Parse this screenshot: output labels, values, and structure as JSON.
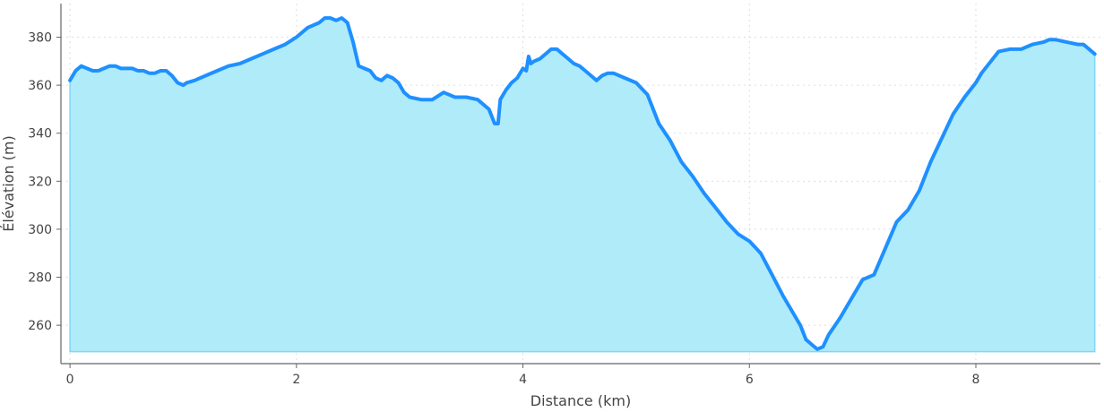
{
  "chart_data": {
    "type": "area",
    "xlabel": "Distance (km)",
    "ylabel": "Élévation (m)",
    "xlim": [
      -0.08,
      9.1
    ],
    "ylim": [
      244,
      394
    ],
    "x_ticks": [
      0,
      2,
      4,
      6,
      8
    ],
    "y_ticks": [
      260,
      280,
      300,
      320,
      340,
      360,
      380
    ],
    "baseline": 249,
    "grid": true,
    "line_color": "#1E90FF",
    "fill_color": "#B0EBFA",
    "fill_edge_color": "#7FD8F2",
    "series": [
      {
        "x": [
          0,
          0.05,
          0.1,
          0.15,
          0.2,
          0.25,
          0.3,
          0.35,
          0.4,
          0.45,
          0.5,
          0.55,
          0.6,
          0.65,
          0.7,
          0.75,
          0.8,
          0.85,
          0.9,
          0.95,
          1.0,
          1.03,
          1.1,
          1.2,
          1.3,
          1.4,
          1.5,
          1.6,
          1.7,
          1.8,
          1.9,
          2.0,
          2.1,
          2.2,
          2.25,
          2.3,
          2.35,
          2.4,
          2.45,
          2.5,
          2.55,
          2.6,
          2.65,
          2.7,
          2.75,
          2.8,
          2.85,
          2.9,
          2.95,
          3.0,
          3.1,
          3.2,
          3.3,
          3.35,
          3.4,
          3.5,
          3.6,
          3.7,
          3.75,
          3.78,
          3.8,
          3.85,
          3.9,
          3.95,
          4.0,
          4.03,
          4.05,
          4.07,
          4.1,
          4.15,
          4.2,
          4.25,
          4.3,
          4.35,
          4.4,
          4.45,
          4.5,
          4.55,
          4.6,
          4.65,
          4.7,
          4.75,
          4.8,
          4.9,
          5.0,
          5.1,
          5.15,
          5.2,
          5.3,
          5.4,
          5.5,
          5.6,
          5.7,
          5.8,
          5.9,
          6.0,
          6.1,
          6.2,
          6.3,
          6.4,
          6.45,
          6.5,
          6.55,
          6.6,
          6.65,
          6.7,
          6.8,
          6.9,
          7.0,
          7.05,
          7.1,
          7.2,
          7.3,
          7.4,
          7.5,
          7.6,
          7.7,
          7.8,
          7.9,
          8.0,
          8.05,
          8.1,
          8.2,
          8.3,
          8.4,
          8.5,
          8.6,
          8.65,
          8.7,
          8.8,
          8.9,
          8.95,
          9.0,
          9.05
        ],
        "y": [
          362,
          366,
          368,
          367,
          366,
          366,
          367,
          368,
          368,
          367,
          367,
          367,
          366,
          366,
          365,
          365,
          366,
          366,
          364,
          361,
          360,
          361,
          362,
          364,
          366,
          368,
          369,
          371,
          373,
          375,
          377,
          380,
          384,
          386,
          388,
          388,
          387,
          388,
          386,
          378,
          368,
          367,
          366,
          363,
          362,
          364,
          363,
          361,
          357,
          355,
          354,
          354,
          357,
          356,
          355,
          355,
          354,
          350,
          344,
          344,
          354,
          358,
          361,
          363,
          367,
          366,
          372,
          369,
          370,
          371,
          373,
          375,
          375,
          373,
          371,
          369,
          368,
          366,
          364,
          362,
          364,
          365,
          365,
          363,
          361,
          356,
          350,
          344,
          337,
          328,
          322,
          315,
          309,
          303,
          298,
          295,
          290,
          281,
          272,
          264,
          260,
          254,
          252,
          250,
          251,
          256,
          263,
          271,
          279,
          280,
          281,
          292,
          303,
          308,
          316,
          328,
          338,
          348,
          355,
          361,
          365,
          368,
          374,
          375,
          375,
          377,
          378,
          379,
          379,
          378,
          377,
          377,
          375,
          373
        ]
      }
    ]
  }
}
